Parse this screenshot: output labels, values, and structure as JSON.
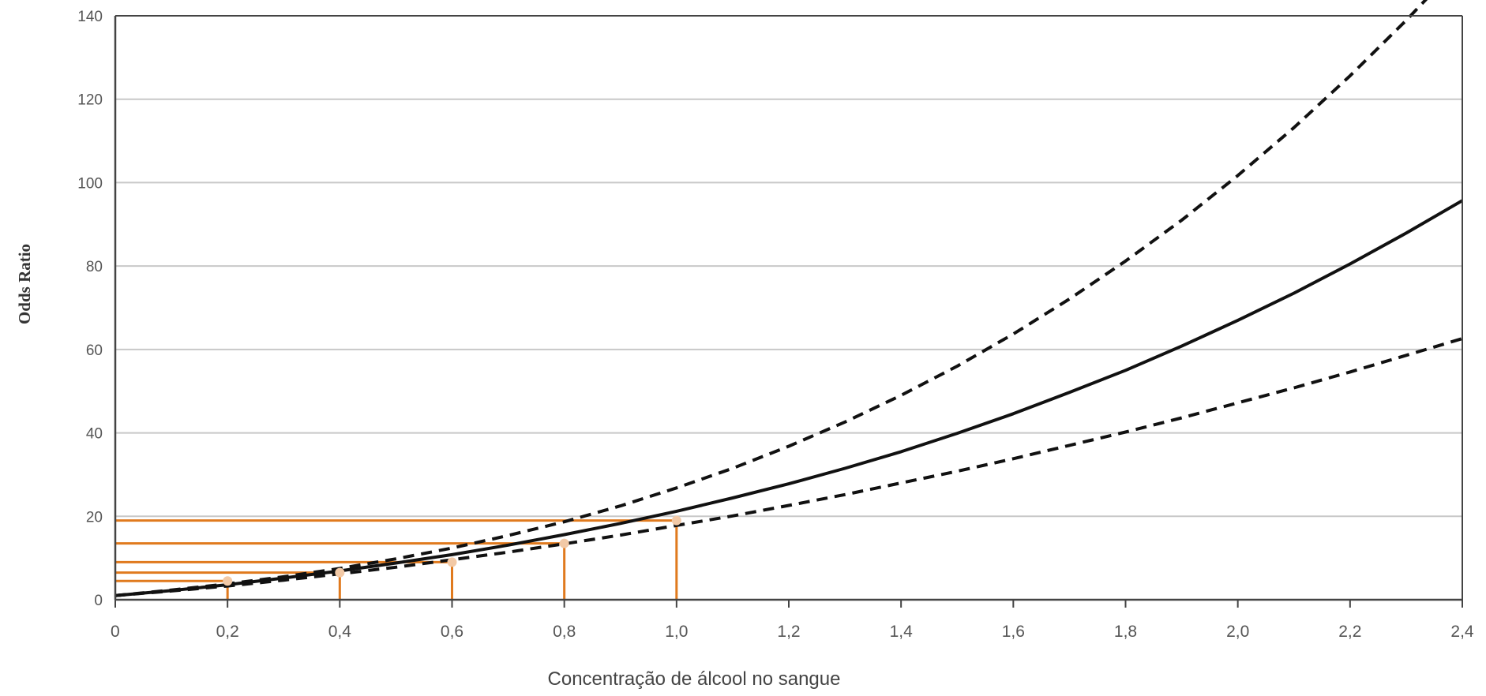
{
  "chart_data": {
    "type": "line",
    "title": "",
    "xlabel": "Concentração de álcool no sangue",
    "ylabel": "Odds Ratio",
    "xlim": [
      0,
      2.4
    ],
    "ylim": [
      0,
      140
    ],
    "grid": "horizontal",
    "legend": "none",
    "x_ticks": [
      "0",
      "0,2",
      "0,4",
      "0,6",
      "0,8",
      "1,0",
      "1,2",
      "1,4",
      "1,6",
      "1,8",
      "2,0",
      "2,2",
      "2,4"
    ],
    "x_tick_values": [
      0,
      0.2,
      0.4,
      0.6,
      0.8,
      1.0,
      1.2,
      1.4,
      1.6,
      1.8,
      2.0,
      2.2,
      2.4
    ],
    "y_ticks": [
      "0",
      "20",
      "40",
      "60",
      "80",
      "100",
      "120",
      "140"
    ],
    "y_tick_values": [
      0,
      20,
      40,
      60,
      80,
      100,
      120,
      140
    ],
    "x": [
      0,
      0.1,
      0.2,
      0.3,
      0.4,
      0.5,
      0.6,
      0.7,
      0.8,
      0.9,
      1.0,
      1.1,
      1.2,
      1.3,
      1.4,
      1.5,
      1.6,
      1.7,
      1.8,
      1.9,
      2.0,
      2.1,
      2.2,
      2.3,
      2.4
    ],
    "series": [
      {
        "style": "solid",
        "color": "#111111",
        "values": [
          1.0,
          2.2,
          3.6,
          5.2,
          6.9,
          8.8,
          10.8,
          13.1,
          15.6,
          18.3,
          21.2,
          24.4,
          27.8,
          31.5,
          35.5,
          39.9,
          44.6,
          49.7,
          55.0,
          60.8,
          67.0,
          73.5,
          80.5,
          87.9,
          95.7
        ]
      },
      {
        "style": "dashed",
        "color": "#111111",
        "values": [
          1.0,
          2.3,
          3.8,
          5.5,
          7.5,
          9.8,
          12.4,
          15.4,
          18.7,
          22.5,
          26.8,
          31.5,
          36.8,
          42.6,
          49.0,
          56.0,
          63.7,
          72.1,
          81.2,
          91.0,
          101.7,
          113.2,
          125.6,
          138.9,
          153.1
        ]
      },
      {
        "style": "dashed",
        "color": "#111111",
        "values": [
          1.0,
          2.1,
          3.3,
          4.7,
          6.2,
          7.8,
          9.6,
          11.4,
          13.4,
          15.5,
          17.8,
          20.1,
          22.6,
          25.2,
          28.0,
          30.8,
          33.8,
          37.0,
          40.2,
          43.6,
          47.2,
          50.8,
          54.6,
          58.6,
          62.6
        ]
      }
    ],
    "markers": {
      "color": "#e07a1e",
      "point_color": "#f2c9a6",
      "points": [
        {
          "x": 0.2,
          "y": 4.5
        },
        {
          "x": 0.4,
          "y": 6.5
        },
        {
          "x": 0.6,
          "y": 9.0
        },
        {
          "x": 0.8,
          "y": 13.5
        },
        {
          "x": 1.0,
          "y": 19.0
        }
      ]
    },
    "colors": {
      "axis": "#444444",
      "grid": "#c8c8c8"
    }
  }
}
